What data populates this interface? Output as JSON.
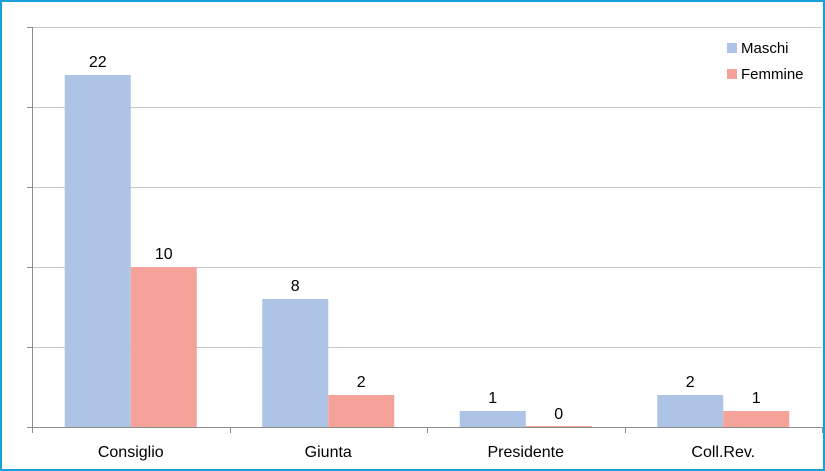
{
  "chart_data": {
    "type": "bar",
    "categories": [
      "Consiglio",
      "Giunta",
      "Presidente",
      "Coll.Rev."
    ],
    "series": [
      {
        "name": "Maschi",
        "values": [
          22,
          8,
          1,
          2
        ],
        "color": "#aec4e6"
      },
      {
        "name": "Femmine",
        "values": [
          10,
          2,
          0,
          1
        ],
        "color": "#f5a29a"
      }
    ],
    "title": "",
    "xlabel": "",
    "ylabel": "",
    "ylim": [
      0,
      25
    ],
    "y_gridline_step": 5,
    "y_tick_labels_shown": false,
    "grid": true,
    "legend_position": "top-right",
    "data_labels": true,
    "frame_color": "#1aa0d8",
    "grid_color": "#c8c8c8",
    "axis_color": "#8c8c8c"
  }
}
